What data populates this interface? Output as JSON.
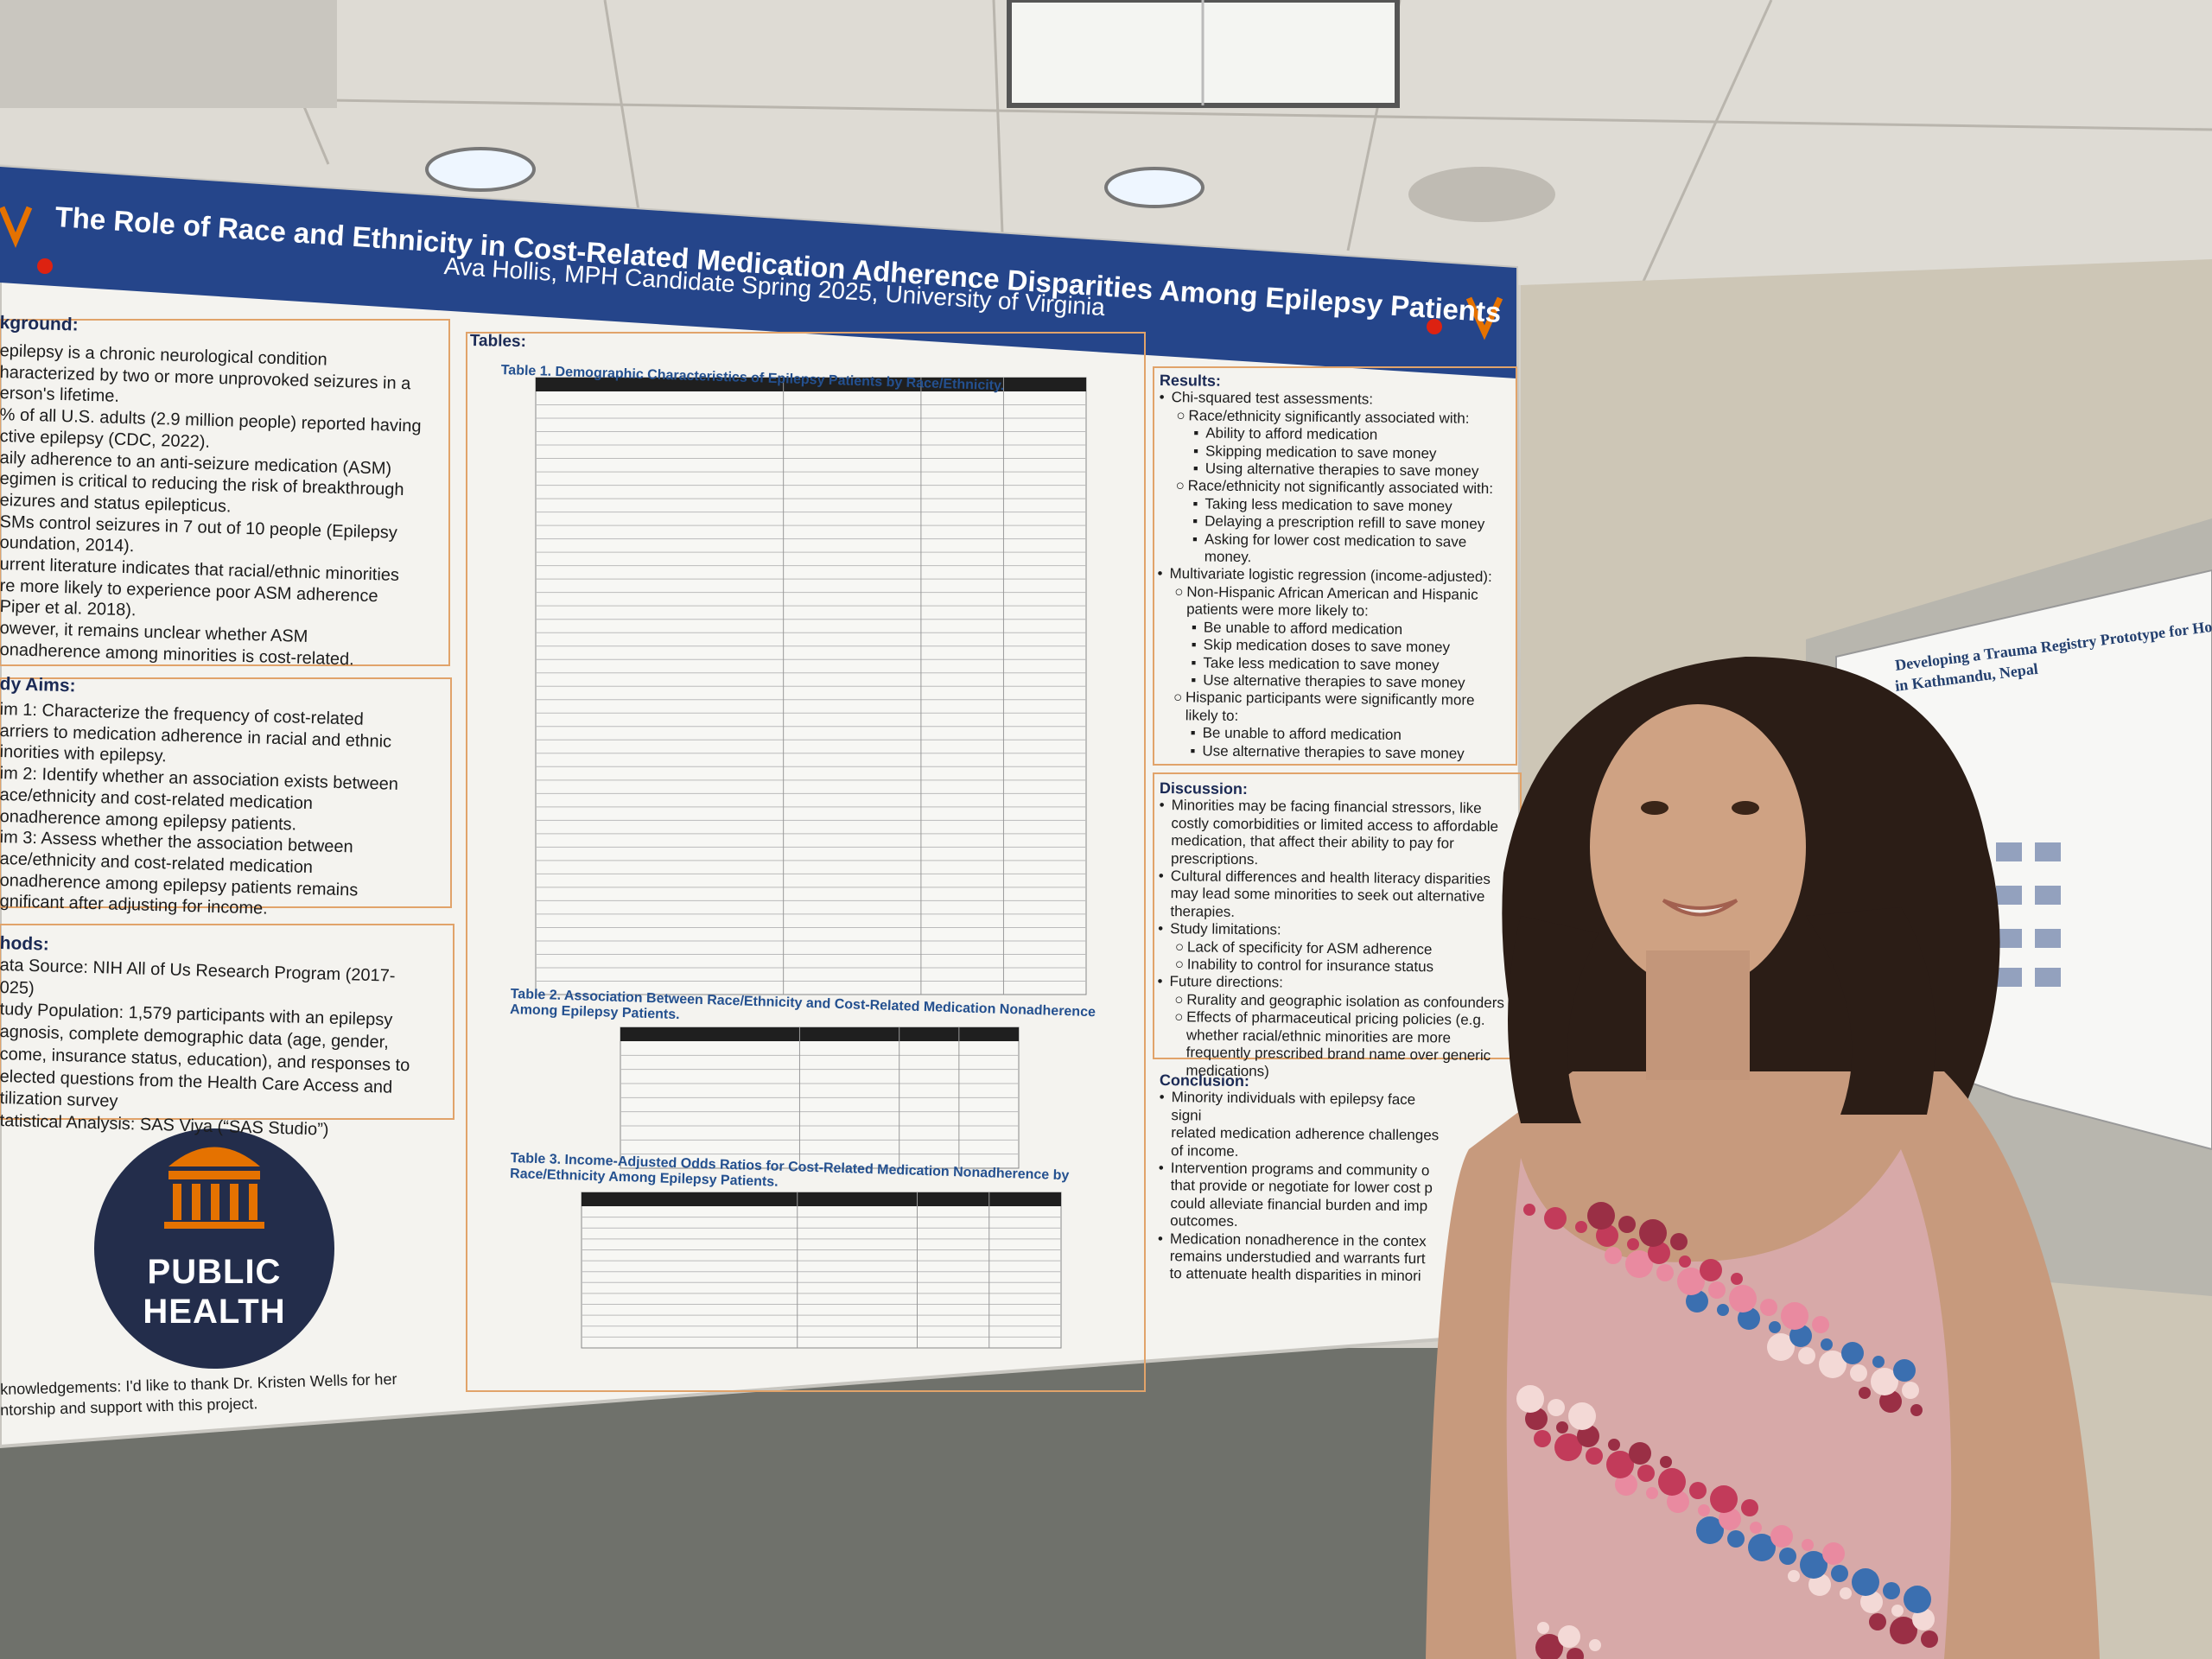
{
  "poster": {
    "title": "The Role of Race and Ethnicity in Cost-Related Medication Adherence Disparities Among Epilepsy Patients",
    "author": "Ava Hollis, MPH Candidate Spring 2025, University of Virginia",
    "background": {
      "heading": "kground:",
      "lines": [
        "epilepsy is a chronic neurological condition",
        "haracterized by two or more unprovoked seizures in a",
        "erson's lifetime.",
        "% of all U.S. adults (2.9 million people) reported having",
        "ctive epilepsy (CDC, 2022).",
        "aily adherence to an anti-seizure medication (ASM)",
        "egimen is critical to reducing the risk of breakthrough",
        "eizures and status epilepticus.",
        "SMs control seizures in 7 out of 10 people (Epilepsy",
        "oundation, 2014).",
        "urrent literature indicates that racial/ethnic minorities",
        "re more likely to experience poor ASM adherence",
        "Piper et al. 2018).",
        "owever, it remains unclear whether ASM",
        "onadherence among minorities is cost-related."
      ]
    },
    "aims": {
      "heading": "dy Aims:",
      "lines": [
        "im 1: Characterize the frequency of cost-related",
        "arriers to medication adherence in racial and ethnic",
        "inorities with epilepsy.",
        "im 2: Identify whether an association exists between",
        "ace/ethnicity and cost-related medication",
        "onadherence among epilepsy patients.",
        "im 3: Assess whether the association between",
        "ace/ethnicity and cost-related medication",
        "onadherence among epilepsy patients remains",
        "gnificant after adjusting for income."
      ]
    },
    "methods": {
      "heading": "hods:",
      "lines": [
        "ata Source: NIH All of Us Research Program (2017-",
        "025)",
        "tudy Population: 1,579 participants with an epilepsy",
        "agnosis, complete demographic data (age, gender,",
        "come, insurance status, education), and responses to",
        "elected questions from the Health Care Access and",
        "tilization survey",
        "tatistical Analysis: SAS Viya (“SAS Studio”)"
      ]
    },
    "logo": [
      "PUBLIC",
      "HEALTH"
    ],
    "acknowledgements": [
      "knowledgements: I'd like to thank Dr. Kristen Wells for her",
      "ntorship and support with this project."
    ],
    "tables": {
      "heading": "Tables:",
      "table1": "Table 1. Demographic Characteristics of Epilepsy Patients by Race/Ethnicity.",
      "table2": "Table 2. Association Between Race/Ethnicity and Cost-Related Medication Nonadherence Among Epilepsy Patients.",
      "table3": "Table 3. Income-Adjusted Odds Ratios for Cost-Related Medication Nonadherence by Race/Ethnicity Among Epilepsy Patients."
    },
    "results": {
      "heading": "Results:",
      "lines": [
        "Chi-squared test assessments:",
        "Race/ethnicity significantly associated with:",
        "Ability to afford medication",
        "Skipping medication to save money",
        "Using alternative therapies to save money",
        "Race/ethnicity not significantly associated with:",
        "Taking less medication to save money",
        "Delaying a prescription refill to save money",
        "Asking for lower cost medication to save money.",
        "Multivariate logistic regression (income-adjusted):",
        "Non-Hispanic African American and Hispanic patients were more likely to:",
        "Be unable to afford medication",
        "Skip medication doses to save money",
        "Take less medication to save money",
        "Use alternative therapies to save money",
        "Hispanic participants were significantly more likely to:",
        "Be unable to afford medication",
        "Use alternative therapies to save money"
      ]
    },
    "discussion": {
      "heading": "Discussion:",
      "lines": [
        "Minorities may be facing financial stressors, like costly comorbidities or limited access to affordable medication, that affect their ability to pay for prescriptions.",
        "Cultural differences and health literacy disparities may lead some minorities to seek out alternative therapies.",
        "Study limitations:",
        "Lack of specificity for ASM adherence",
        "Inability to control for insurance status",
        "Future directions:",
        "Rurality and geographic isolation as confounders",
        "Effects of pharmaceutical pricing policies (e.g. whether racial/ethnic minorities are more frequently prescribed brand name over generic medications)"
      ]
    },
    "conclusion": {
      "heading": "Conclusion:",
      "lines": [
        "Minority individuals with epilepsy face signi",
        "related medication adherence challenges",
        "of income.",
        "Intervention programs and community o",
        "that provide or negotiate for lower cost p",
        "could alleviate financial burden and imp",
        "outcomes.",
        "Medication nonadherence in the contex",
        "remains understudied and warrants furt",
        "to attenuate health disparities in minori"
      ]
    }
  },
  "side_poster": {
    "title": [
      "Developing a Trauma Registry Prototype for Hospitals",
      "in Kathmandu, Nepal"
    ]
  }
}
